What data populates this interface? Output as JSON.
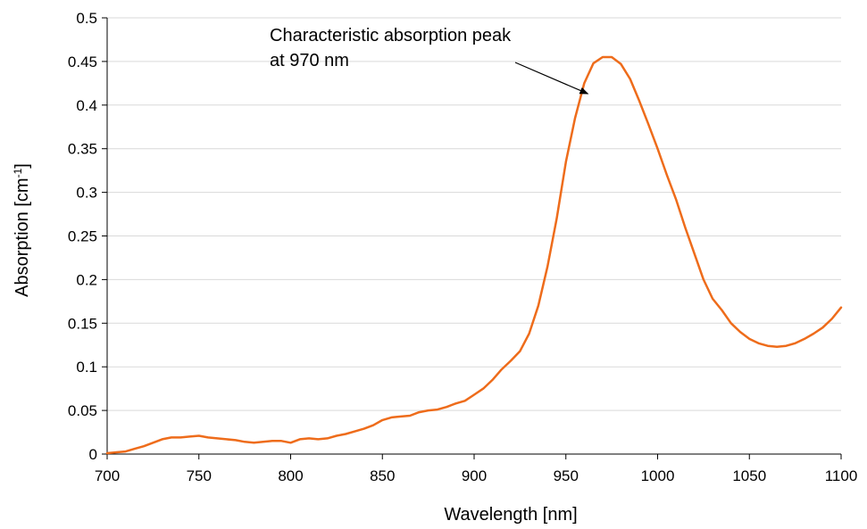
{
  "chart_data": {
    "type": "line",
    "xlabel": "Wavelength [nm]",
    "ylabel": "Absorption [cm",
    "ylabel_superscript": "-1",
    "ylabel_suffix": "]",
    "xlim": [
      700,
      1100
    ],
    "ylim": [
      0,
      0.5
    ],
    "x_ticks": [
      700,
      750,
      800,
      850,
      900,
      950,
      1000,
      1050,
      1100
    ],
    "x_tick_labels": [
      "700",
      "750",
      "800",
      "850",
      "900",
      "950",
      "1000",
      "1050",
      "1100"
    ],
    "y_ticks": [
      0,
      0.05,
      0.1,
      0.15,
      0.2,
      0.25,
      0.3,
      0.35,
      0.4,
      0.45,
      0.5
    ],
    "y_tick_labels": [
      "0",
      "0.05",
      "0.1",
      "0.15",
      "0.2",
      "0.25",
      "0.3",
      "0.35",
      "0.4",
      "0.45",
      "0.5"
    ],
    "grid": true,
    "series_color": "#EE6C1B",
    "series": [
      {
        "x": [
          700,
          705,
          710,
          715,
          720,
          725,
          730,
          735,
          740,
          745,
          750,
          755,
          760,
          765,
          770,
          775,
          780,
          785,
          790,
          795,
          800,
          805,
          810,
          815,
          820,
          825,
          830,
          835,
          840,
          845,
          850,
          855,
          860,
          865,
          870,
          875,
          880,
          885,
          890,
          895,
          900,
          905,
          910,
          915,
          920,
          925,
          930,
          935,
          940,
          945,
          950,
          955,
          960,
          965,
          970,
          975,
          980,
          985,
          990,
          995,
          1000,
          1005,
          1010,
          1015,
          1020,
          1025,
          1030,
          1035,
          1040,
          1045,
          1050,
          1055,
          1060,
          1065,
          1070,
          1075,
          1080,
          1085,
          1090,
          1095,
          1100
        ],
        "values": [
          0.001,
          0.002,
          0.003,
          0.006,
          0.009,
          0.013,
          0.017,
          0.019,
          0.019,
          0.02,
          0.021,
          0.019,
          0.018,
          0.017,
          0.016,
          0.014,
          0.013,
          0.014,
          0.015,
          0.015,
          0.013,
          0.017,
          0.018,
          0.017,
          0.018,
          0.021,
          0.023,
          0.026,
          0.029,
          0.033,
          0.039,
          0.042,
          0.043,
          0.044,
          0.048,
          0.05,
          0.051,
          0.054,
          0.058,
          0.061,
          0.068,
          0.075,
          0.085,
          0.097,
          0.107,
          0.118,
          0.138,
          0.17,
          0.215,
          0.27,
          0.335,
          0.385,
          0.425,
          0.448,
          0.455,
          0.455,
          0.447,
          0.43,
          0.405,
          0.378,
          0.35,
          0.32,
          0.292,
          0.26,
          0.23,
          0.2,
          0.178,
          0.165,
          0.15,
          0.14,
          0.132,
          0.127,
          0.124,
          0.123,
          0.124,
          0.127,
          0.132,
          0.138,
          0.145,
          0.155,
          0.168
        ]
      }
    ],
    "annotations": [
      {
        "lines": [
          "Characteristic absorption peak",
          "at 970 nm"
        ],
        "arrow_to": [
          962,
          0.413
        ]
      }
    ]
  }
}
